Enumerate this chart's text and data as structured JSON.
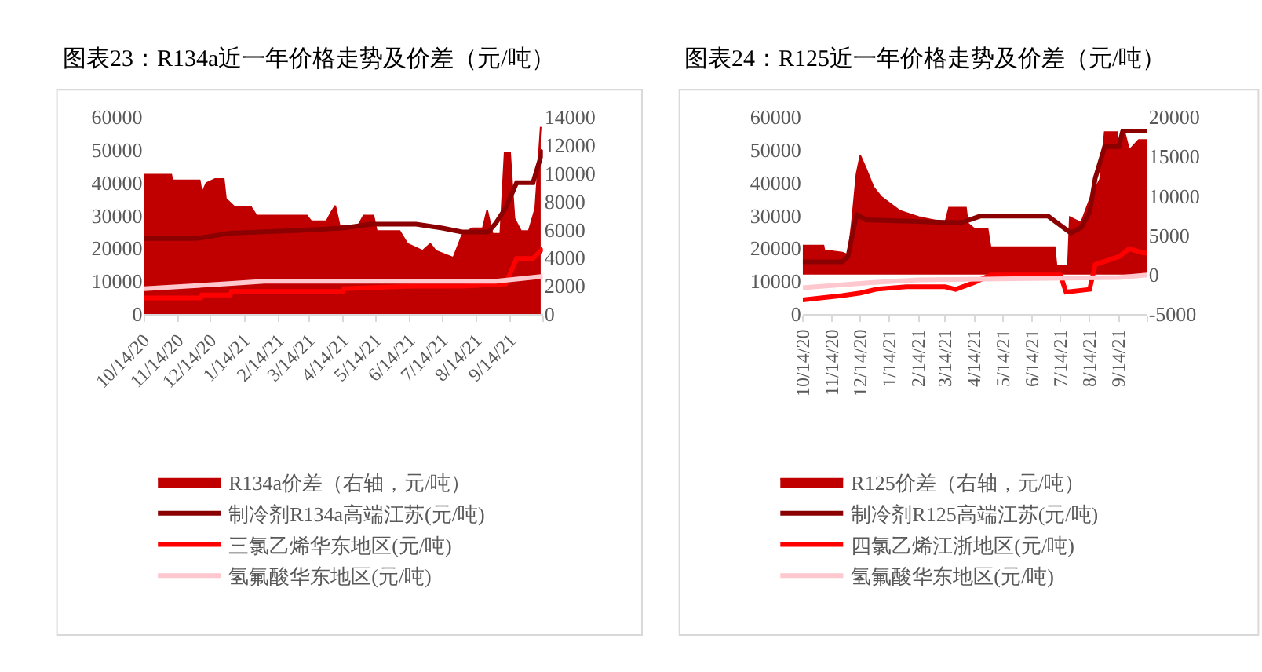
{
  "chart_data": [
    {
      "type": "line",
      "title": "图表23：R134a近一年价格走势及价差（元/吨）",
      "legend": "bottom",
      "xlim": [
        "2020-10-14",
        "2021-10-14"
      ],
      "xticks": [
        {
          "value": "2020-10-14",
          "label": "10/14/20"
        },
        {
          "value": "2020-11-14",
          "label": "11/14/20"
        },
        {
          "value": "2020-12-14",
          "label": "12/14/20"
        },
        {
          "value": "2021-01-14",
          "label": "1/14/21"
        },
        {
          "value": "2021-02-14",
          "label": "2/14/21"
        },
        {
          "value": "2021-03-14",
          "label": "3/14/21"
        },
        {
          "value": "2021-04-14",
          "label": "4/14/21"
        },
        {
          "value": "2021-05-14",
          "label": "5/14/21"
        },
        {
          "value": "2021-06-14",
          "label": "6/14/21"
        },
        {
          "value": "2021-07-14",
          "label": "7/14/21"
        },
        {
          "value": "2021-08-14",
          "label": "8/14/21"
        },
        {
          "value": "2021-09-14",
          "label": "9/14/21"
        },
        {
          "value": "2021-10-14",
          "label": null
        }
      ],
      "ylim": [
        0,
        60000
      ],
      "yticks": [
        0,
        10000,
        20000,
        30000,
        40000,
        50000,
        60000
      ],
      "y2lim": [
        0,
        14000
      ],
      "y2ticks": [
        0,
        2000,
        4000,
        6000,
        8000,
        10000,
        12000,
        14000
      ],
      "series": [
        {
          "name": "R134a价差（右轴，元/吨）",
          "type": "area",
          "axis": "y2",
          "color": "#c00000",
          "x": [
            "2020-10-14",
            "2020-11-08",
            "2020-11-09",
            "2020-12-04",
            "2020-12-06",
            "2020-12-10",
            "2020-12-18",
            "2020-12-26",
            "2020-12-28",
            "2021-01-05",
            "2021-01-20",
            "2021-01-25",
            "2021-03-12",
            "2021-03-16",
            "2021-03-30",
            "2021-04-03",
            "2021-04-07",
            "2021-04-11",
            "2021-04-28",
            "2021-05-03",
            "2021-05-12",
            "2021-05-15",
            "2021-06-05",
            "2021-06-12",
            "2021-06-26",
            "2021-07-03",
            "2021-07-08",
            "2021-07-24",
            "2021-08-01",
            "2021-08-10",
            "2021-08-20",
            "2021-08-24",
            "2021-08-29",
            "2021-09-05",
            "2021-09-09",
            "2021-09-14",
            "2021-09-18",
            "2021-09-24",
            "2021-10-01",
            "2021-10-07",
            "2021-10-12"
          ],
          "values": [
            9900,
            9900,
            9500,
            9500,
            8600,
            9300,
            9600,
            9600,
            8200,
            7600,
            7600,
            7000,
            7000,
            6600,
            6600,
            7200,
            7700,
            6300,
            6300,
            7000,
            7000,
            5900,
            5900,
            5000,
            4500,
            5000,
            4500,
            4000,
            5600,
            6100,
            6100,
            7400,
            5700,
            5700,
            11500,
            11500,
            6800,
            5900,
            5900,
            7500,
            13300
          ]
        },
        {
          "name": "制冷剂R134a高端江苏(元/吨)",
          "color": "#8b0000",
          "x": [
            "2020-10-14",
            "2020-12-01",
            "2021-01-01",
            "2021-03-01",
            "2021-04-14",
            "2021-05-10",
            "2021-06-20",
            "2021-07-14",
            "2021-08-01",
            "2021-08-25",
            "2021-09-01",
            "2021-09-10",
            "2021-09-20",
            "2021-10-05",
            "2021-10-14"
          ],
          "values": [
            23000,
            23000,
            24600,
            25400,
            26200,
            27400,
            27400,
            26200,
            25000,
            25000,
            27700,
            32300,
            40000,
            40000,
            50000
          ]
        },
        {
          "name": "三氯乙烯华东地区(元/吨)",
          "color": "#ff0000",
          "x": [
            "2020-10-14",
            "2020-12-05",
            "2020-12-06",
            "2021-01-01",
            "2021-01-02",
            "2021-04-14",
            "2021-04-15",
            "2021-06-14",
            "2021-08-01",
            "2021-09-10",
            "2021-09-20",
            "2021-10-05",
            "2021-10-14"
          ],
          "values": [
            4900,
            4900,
            5800,
            5800,
            6900,
            6900,
            7700,
            8500,
            8500,
            9200,
            16900,
            16900,
            20000
          ]
        },
        {
          "name": "氢氟酸华东地区(元/吨)",
          "color": "#ffc7ce",
          "x": [
            "2020-10-14",
            "2020-12-28",
            "2021-02-01",
            "2021-09-01",
            "2021-10-14"
          ],
          "values": [
            7700,
            9200,
            10000,
            10000,
            11500
          ]
        }
      ]
    },
    {
      "type": "line",
      "title": "图表24：R125近一年价格走势及价差（元/吨）",
      "legend": "bottom",
      "xlim": [
        "2020-10-14",
        "2021-10-14"
      ],
      "xticks": [
        {
          "value": "2020-10-14",
          "label": "10/14/20"
        },
        {
          "value": "2020-11-14",
          "label": "11/14/20"
        },
        {
          "value": "2020-12-14",
          "label": "12/14/20"
        },
        {
          "value": "2021-01-14",
          "label": "1/14/21"
        },
        {
          "value": "2021-02-14",
          "label": "2/14/21"
        },
        {
          "value": "2021-03-14",
          "label": "3/14/21"
        },
        {
          "value": "2021-04-14",
          "label": "4/14/21"
        },
        {
          "value": "2021-05-14",
          "label": "5/14/21"
        },
        {
          "value": "2021-06-14",
          "label": "6/14/21"
        },
        {
          "value": "2021-07-14",
          "label": "7/14/21"
        },
        {
          "value": "2021-08-14",
          "label": "8/14/21"
        },
        {
          "value": "2021-09-14",
          "label": "9/14/21"
        },
        {
          "value": "2021-10-14",
          "label": null
        }
      ],
      "ylim": [
        0,
        60000
      ],
      "yticks": [
        0,
        10000,
        20000,
        30000,
        40000,
        50000,
        60000
      ],
      "y2lim": [
        -5000,
        20000
      ],
      "y2ticks": [
        -5000,
        0,
        5000,
        10000,
        15000,
        20000
      ],
      "series": [
        {
          "name": "R125价差（右轴，元/吨）",
          "type": "area",
          "axis": "y2",
          "color": "#c00000",
          "x": [
            "2020-10-14",
            "2020-11-05",
            "2020-11-06",
            "2020-11-25",
            "2020-12-01",
            "2020-12-05",
            "2020-12-10",
            "2020-12-14",
            "2020-12-20",
            "2020-12-28",
            "2021-01-05",
            "2021-01-25",
            "2021-02-14",
            "2021-03-14",
            "2021-03-18",
            "2021-04-05",
            "2021-04-07",
            "2021-04-14",
            "2021-04-28",
            "2021-05-01",
            "2021-07-08",
            "2021-07-10",
            "2021-07-22",
            "2021-07-24",
            "2021-08-05",
            "2021-08-14",
            "2021-08-25",
            "2021-08-30",
            "2021-09-12",
            "2021-09-14",
            "2021-09-20",
            "2021-09-25",
            "2021-10-05",
            "2021-10-14"
          ],
          "values": [
            3700,
            3700,
            3100,
            2800,
            2500,
            6500,
            12800,
            15100,
            13500,
            11100,
            9900,
            8100,
            7300,
            6600,
            8500,
            8500,
            6500,
            5800,
            5800,
            3500,
            3500,
            1100,
            1100,
            7300,
            6600,
            9500,
            12100,
            18100,
            18100,
            15800,
            18100,
            15800,
            17100,
            17100
          ]
        },
        {
          "name": "制冷剂R125高端江苏(元/吨)",
          "color": "#8b0000",
          "x": [
            "2020-10-14",
            "2020-11-25",
            "2020-12-01",
            "2020-12-10",
            "2020-12-20",
            "2021-03-14",
            "2021-04-01",
            "2021-04-20",
            "2021-07-01",
            "2021-07-10",
            "2021-07-25",
            "2021-08-05",
            "2021-08-14",
            "2021-08-20",
            "2021-08-30",
            "2021-09-14",
            "2021-09-18",
            "2021-10-14"
          ],
          "values": [
            15900,
            15900,
            17500,
            30300,
            28700,
            27900,
            27900,
            29800,
            29800,
            27900,
            24700,
            26300,
            31000,
            41400,
            51000,
            51000,
            55700,
            55700
          ]
        },
        {
          "name": "四氯乙烯江浙地区(元/吨)",
          "color": "#ff0000",
          "x": [
            "2020-10-14",
            "2020-11-25",
            "2020-12-14",
            "2021-01-01",
            "2021-02-01",
            "2021-03-14",
            "2021-03-25",
            "2021-04-14",
            "2021-05-01",
            "2021-07-14",
            "2021-07-20",
            "2021-08-14",
            "2021-08-20",
            "2021-09-14",
            "2021-09-25",
            "2021-10-10",
            "2021-10-14"
          ],
          "values": [
            4300,
            5600,
            6400,
            7600,
            8300,
            8300,
            7500,
            9600,
            11900,
            11900,
            6700,
            7500,
            15100,
            17500,
            19900,
            18600,
            18600
          ]
        },
        {
          "name": "氢氟酸华东地区(元/吨)",
          "color": "#ffc7ce",
          "x": [
            "2020-10-14",
            "2020-12-28",
            "2021-02-14",
            "2021-09-14",
            "2021-10-14"
          ],
          "values": [
            8000,
            9600,
            10400,
            11100,
            11900
          ]
        }
      ]
    }
  ]
}
